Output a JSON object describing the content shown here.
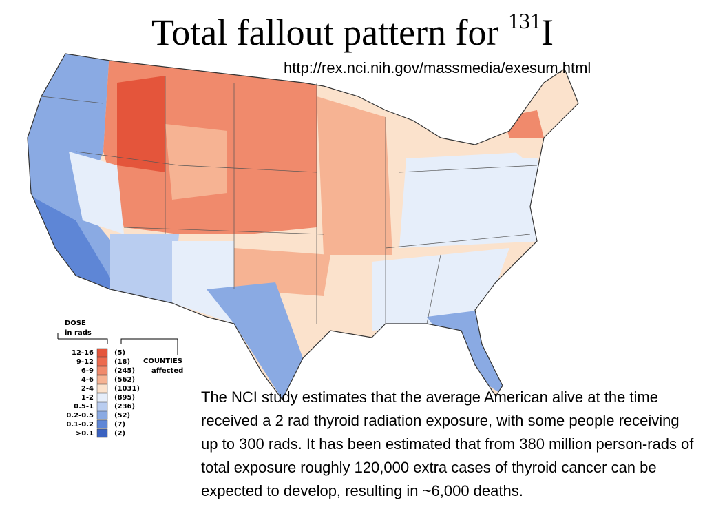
{
  "title": {
    "text": "Total fallout pattern for ",
    "superscript": "131",
    "element": "I"
  },
  "url": "http://rex.nci.nih.gov/massmedia/exesum.html",
  "legend": {
    "title": "DOSE",
    "subtitle": "in rads",
    "counties_title": "COUNTIES",
    "counties_subtitle": "affected",
    "rows": [
      {
        "range": "12-16",
        "count": "(5)",
        "color": "#e4553b"
      },
      {
        "range": "9-12",
        "count": "(18)",
        "color": "#ec6a4e"
      },
      {
        "range": "6-9",
        "count": "(245)",
        "color": "#f08a6c"
      },
      {
        "range": "4-6",
        "count": "(562)",
        "color": "#f6b393"
      },
      {
        "range": "2-4",
        "count": "(1031)",
        "color": "#fbe2cc"
      },
      {
        "range": "1-2",
        "count": "(895)",
        "color": "#e6eefa"
      },
      {
        "range": "0.5-1",
        "count": "(236)",
        "color": "#b9cdf0"
      },
      {
        "range": "0.2-0.5",
        "count": "(52)",
        "color": "#8aaae3"
      },
      {
        "range": "0.1-0.2",
        "count": "(7)",
        "color": "#5e86d6"
      },
      {
        "range": ">0.1",
        "count": "(2)",
        "color": "#3b62c0"
      }
    ]
  },
  "paragraph": "The NCI study estimates that the average American alive at the time received a 2 rad thyroid radiation exposure, with some people receiving up to 300 rads. It has been estimated that from 380 million person-rads of total exposure roughly 120,000 extra cases of thyroid cancer can be expected to develop, resulting in ~6,000 deaths."
}
